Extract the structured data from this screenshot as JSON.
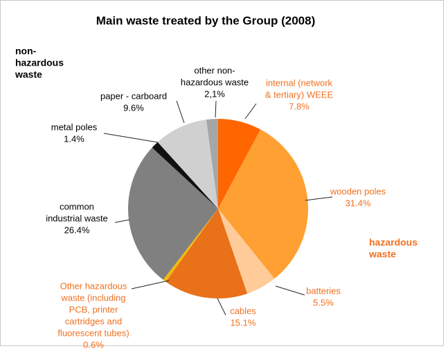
{
  "chart_data": {
    "type": "pie",
    "title": "Main waste treated by the Group (2008)",
    "categories": [
      [
        "internal (network",
        "& tertiary) WEEE"
      ],
      [
        "wooden poles"
      ],
      [
        "batteries"
      ],
      [
        "cables"
      ],
      [
        "Other hazardous",
        "waste (including",
        "PCB, printer",
        "cartridges and",
        "fluorescent tubes)"
      ],
      [
        "common",
        "industrial waste"
      ],
      [
        "metal poles"
      ],
      [
        "paper - carboard"
      ],
      [
        "other non-",
        "hazardous waste"
      ]
    ],
    "values": [
      7.8,
      31.4,
      5.5,
      15.1,
      0.6,
      26.4,
      1.4,
      9.6,
      2.1
    ],
    "value_labels": [
      "7.8%",
      "31.4%",
      "5.5%",
      "15.1%",
      "0.6%",
      "26.4%",
      "1.4%",
      "9.6%",
      "2,1%"
    ],
    "colors": [
      "#ff6600",
      "#ffa033",
      "#ffcc99",
      "#e8711a",
      "#f2b90c",
      "#808080",
      "#111111",
      "#d0d0d0",
      "#a6a6a6"
    ],
    "annotations": [
      [
        "non-",
        "hazardous",
        "waste"
      ],
      [
        "hazardous",
        "waste"
      ]
    ]
  }
}
